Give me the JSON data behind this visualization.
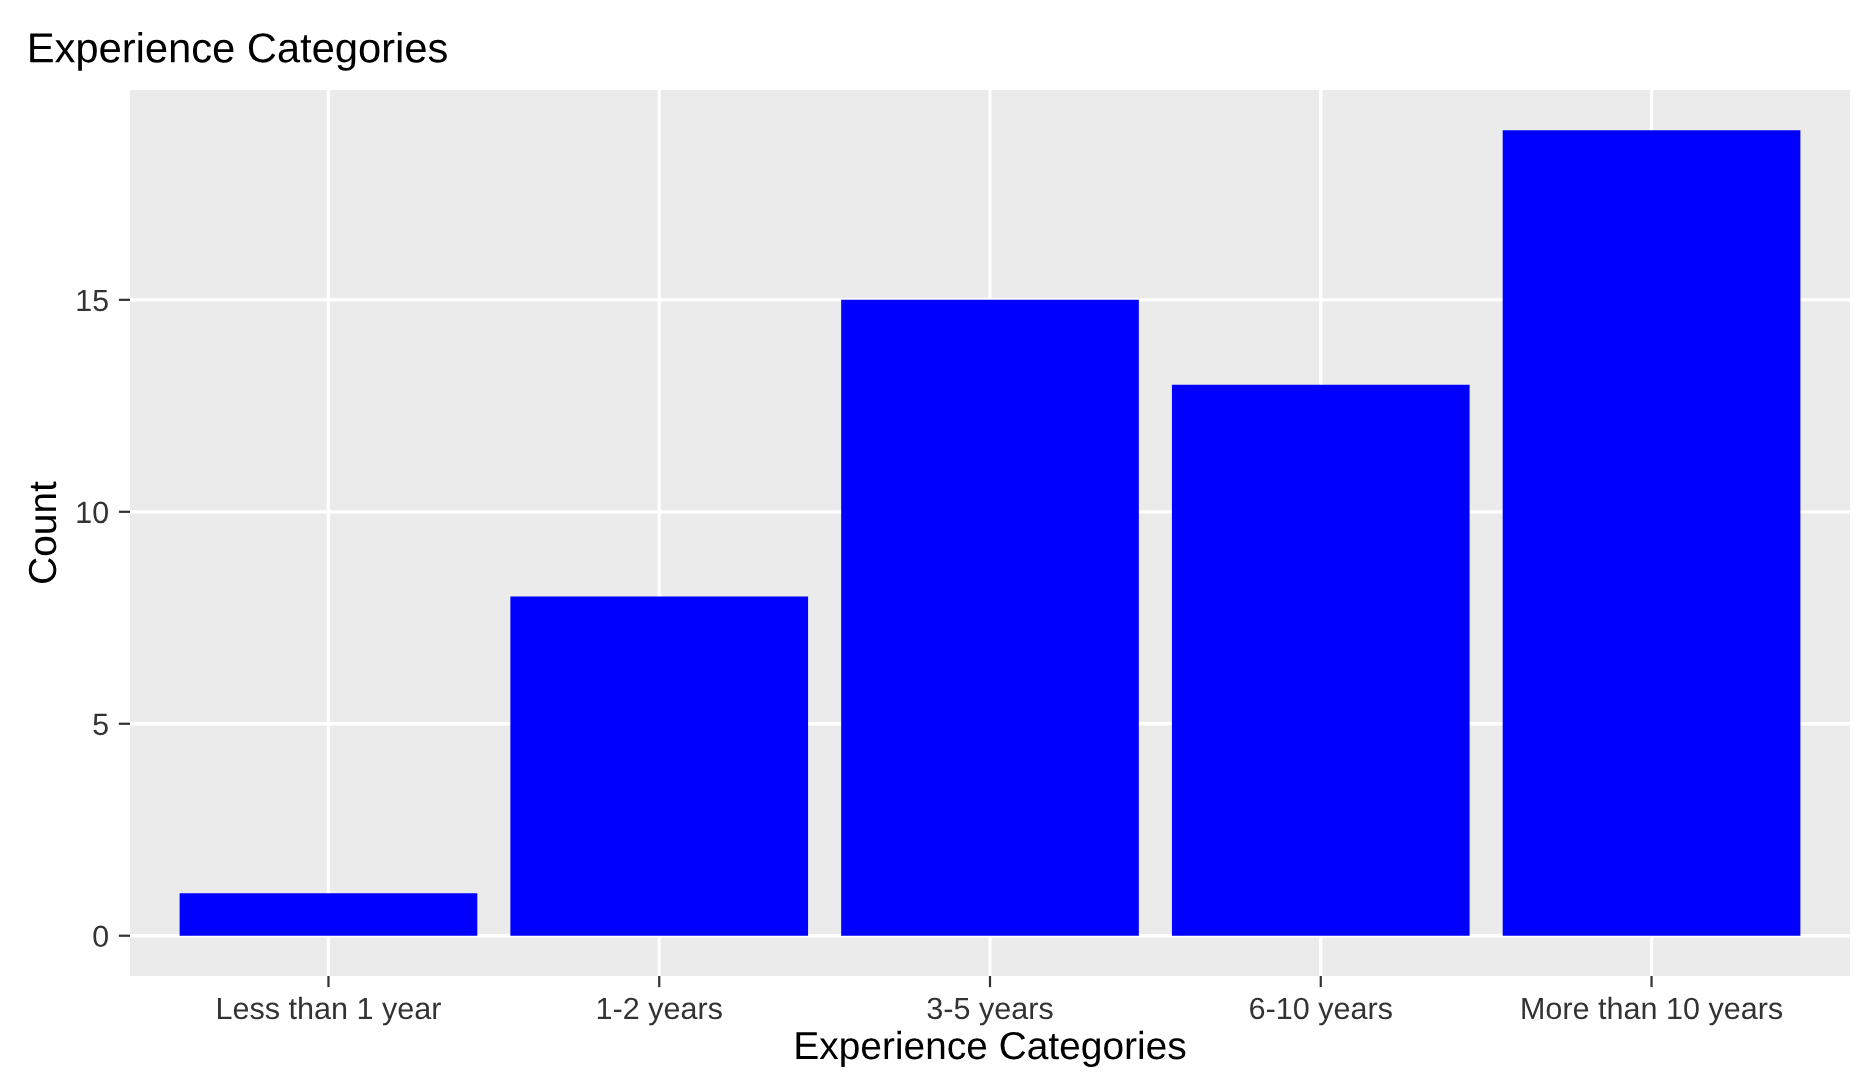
{
  "chart_data": {
    "type": "bar",
    "title": "Experience Categories",
    "xlabel": "Experience Categories",
    "ylabel": "Count",
    "categories": [
      "Less than 1 year",
      "1-2 years",
      "3-5 years",
      "6-10 years",
      "More than 10 years"
    ],
    "values": [
      1,
      8,
      15,
      13,
      19
    ],
    "color": "#0000ff",
    "ylim": [
      -0.95,
      19.95
    ],
    "yticks": [
      0,
      5,
      10,
      15
    ],
    "grid": true
  }
}
